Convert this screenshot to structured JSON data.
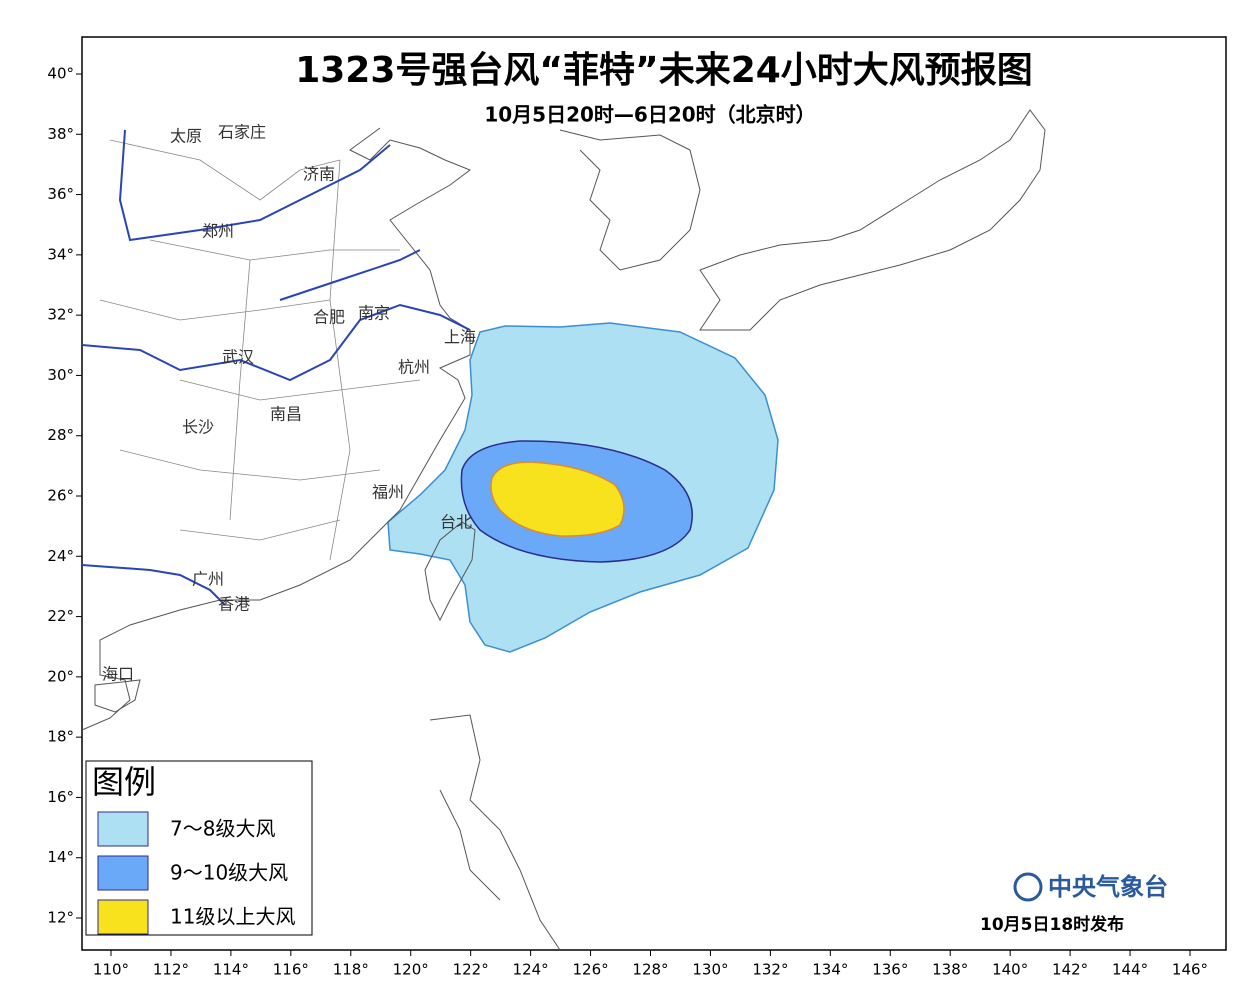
{
  "header": {
    "title": "1323号强台风“菲特”未来24小时大风预报图",
    "subtitle": "10月5日20时—6日20时（北京时）"
  },
  "map": {
    "lon_ticks": [
      {
        "value": 110,
        "label": "110°"
      },
      {
        "value": 112,
        "label": "112°"
      },
      {
        "value": 114,
        "label": "114°"
      },
      {
        "value": 116,
        "label": "116°"
      },
      {
        "value": 118,
        "label": "118°"
      },
      {
        "value": 120,
        "label": "120°"
      },
      {
        "value": 122,
        "label": "122°"
      },
      {
        "value": 124,
        "label": "124°"
      },
      {
        "value": 126,
        "label": "126°"
      },
      {
        "value": 128,
        "label": "128°"
      },
      {
        "value": 130,
        "label": "130°"
      },
      {
        "value": 132,
        "label": "132°"
      },
      {
        "value": 134,
        "label": "134°"
      },
      {
        "value": 136,
        "label": "136°"
      },
      {
        "value": 138,
        "label": "138°"
      },
      {
        "value": 140,
        "label": "140°"
      },
      {
        "value": 142,
        "label": "142°"
      },
      {
        "value": 144,
        "label": "144°"
      },
      {
        "value": 146,
        "label": "146°"
      }
    ],
    "lat_ticks": [
      {
        "value": 40,
        "label": "40°"
      },
      {
        "value": 38,
        "label": "38°"
      },
      {
        "value": 36,
        "label": "36°"
      },
      {
        "value": 34,
        "label": "34°"
      },
      {
        "value": 32,
        "label": "32°"
      },
      {
        "value": 30,
        "label": "30°"
      },
      {
        "value": 28,
        "label": "28°"
      },
      {
        "value": 26,
        "label": "26°"
      },
      {
        "value": 24,
        "label": "24°"
      },
      {
        "value": 22,
        "label": "22°"
      },
      {
        "value": 20,
        "label": "20°"
      },
      {
        "value": 18,
        "label": "18°"
      },
      {
        "value": 16,
        "label": "16°"
      },
      {
        "value": 14,
        "label": "14°"
      },
      {
        "value": 12,
        "label": "12°"
      }
    ],
    "cities": [
      "太原",
      "石家庄",
      "济南",
      "郑州",
      "合肥",
      "南京",
      "上海",
      "武汉",
      "杭州",
      "长沙",
      "南昌",
      "福州",
      "台北",
      "广州",
      "香港",
      "海口"
    ]
  },
  "legend": {
    "title": "图例",
    "items": [
      {
        "label": "7～8级大风",
        "color": "#ace0f2"
      },
      {
        "label": "9～10级大风",
        "color": "#6aa8f8"
      },
      {
        "label": "11级以上大风",
        "color": "#f7e21d"
      }
    ]
  },
  "footer": {
    "issuer": "中央气象台",
    "issued": "10月5日18时发布"
  }
}
